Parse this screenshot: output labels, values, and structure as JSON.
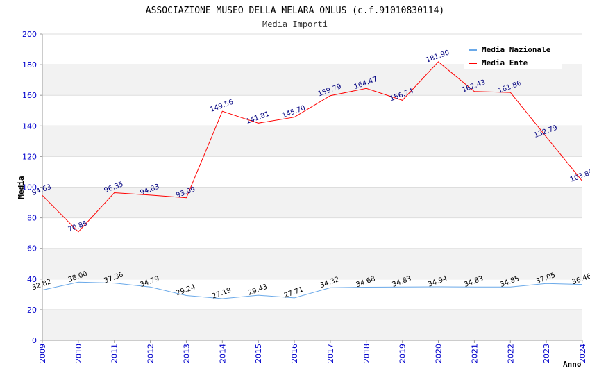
{
  "chart_data": {
    "type": "line",
    "title": "ASSOCIAZIONE MUSEO DELLA MELARA ONLUS (c.f.91010830114)",
    "subtitle": "Media Importi",
    "xlabel": "Anno",
    "ylabel": "Media",
    "ylim": [
      0,
      200
    ],
    "yticks": [
      "0",
      "20",
      "40",
      "60",
      "80",
      "100",
      "120",
      "140",
      "160",
      "180",
      "200"
    ],
    "categories": [
      "2009",
      "2010",
      "2011",
      "2012",
      "2013",
      "2014",
      "2015",
      "2016",
      "2017",
      "2018",
      "2019",
      "2020",
      "2021",
      "2022",
      "2023",
      "2024"
    ],
    "legend_position": "top-right",
    "series": [
      {
        "name": "Media Nazionale",
        "color": "#6aa9e9",
        "values": [
          32.82,
          38.0,
          37.36,
          34.79,
          29.24,
          27.19,
          29.43,
          27.71,
          34.32,
          34.68,
          34.83,
          34.94,
          34.83,
          34.85,
          37.05,
          36.46
        ],
        "labels": [
          "32.82",
          "38.00",
          "37.36",
          "34.79",
          "29.24",
          "27.19",
          "29.43",
          "27.71",
          "34.32",
          "34.68",
          "34.83",
          "34.94",
          "34.83",
          "34.85",
          "37.05",
          "36.46"
        ]
      },
      {
        "name": "Media Ente",
        "color": "#ff0000",
        "values": [
          94.63,
          70.85,
          96.35,
          94.83,
          93.09,
          149.56,
          141.81,
          145.7,
          159.79,
          164.47,
          156.74,
          181.9,
          162.43,
          161.86,
          132.79,
          103.89
        ],
        "labels": [
          "94.63",
          "70.85",
          "96.35",
          "94.83",
          "93.09",
          "149.56",
          "141.81",
          "145.70",
          "159.79",
          "164.47",
          "156.74",
          "181.90",
          "162.43",
          "161.86",
          "132.79",
          "103.89"
        ]
      }
    ]
  }
}
